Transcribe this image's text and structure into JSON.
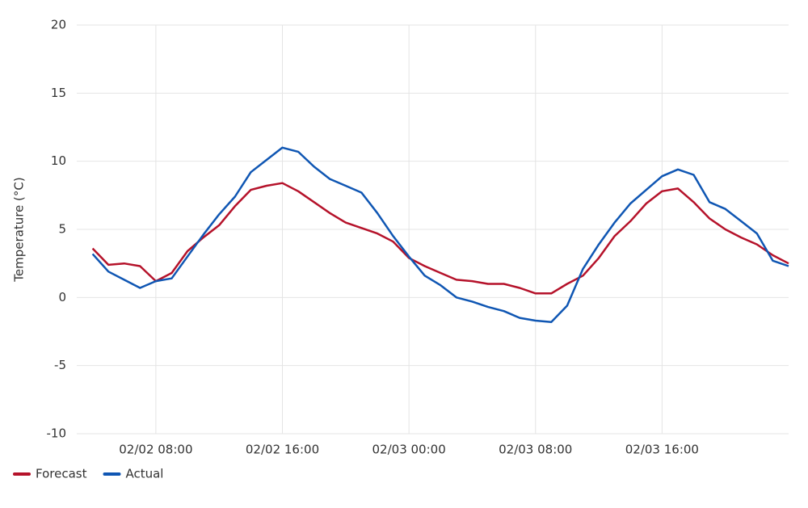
{
  "chart_data": {
    "type": "line",
    "y_label": "Temperature (°C)",
    "x": [
      null,
      null,
      null,
      null,
      null,
      "02/02 08:00",
      null,
      null,
      null,
      null,
      null,
      null,
      null,
      "02/02 16:00",
      null,
      null,
      null,
      null,
      null,
      null,
      null,
      "02/03 00:00",
      null,
      null,
      null,
      null,
      null,
      null,
      null,
      "02/03 08:00",
      null,
      null,
      null,
      null,
      null,
      null,
      null,
      "02/03 16:00",
      null,
      null,
      null,
      null,
      null,
      null,
      null,
      null
    ],
    "series": [
      {
        "name": "Forecast",
        "color": "#b5122a",
        "values": [
          null,
          3.6,
          2.4,
          2.5,
          2.3,
          1.2,
          1.8,
          3.4,
          4.4,
          5.3,
          6.7,
          7.9,
          8.2,
          8.4,
          7.8,
          7.0,
          6.2,
          5.5,
          5.1,
          4.7,
          4.1,
          2.9,
          2.3,
          1.8,
          1.3,
          1.2,
          1.0,
          1.0,
          0.7,
          0.3,
          0.3,
          1.0,
          1.6,
          2.9,
          4.5,
          5.6,
          6.9,
          7.8,
          8.0,
          7.0,
          5.8,
          5.0,
          4.4,
          3.9,
          3.1,
          2.5
        ]
      },
      {
        "name": "Actual",
        "color": "#0f56b3",
        "values": [
          null,
          3.2,
          1.9,
          1.3,
          0.7,
          1.2,
          1.4,
          3.0,
          4.6,
          6.1,
          7.4,
          9.2,
          10.1,
          11.0,
          10.7,
          9.6,
          8.7,
          8.2,
          7.7,
          6.2,
          4.5,
          3.0,
          1.6,
          0.9,
          0.0,
          -0.3,
          -0.7,
          -1.0,
          -1.5,
          -1.7,
          -1.8,
          -0.6,
          2.1,
          3.9,
          5.5,
          6.9,
          7.9,
          8.9,
          9.4,
          9.0,
          7.0,
          6.5,
          5.6,
          4.7,
          2.7,
          2.3
        ]
      }
    ],
    "ylim": [
      -10,
      20
    ],
    "yticks": [
      -10,
      -5,
      0,
      5,
      10,
      15,
      20
    ],
    "grid": true,
    "legend": "bottom-left"
  }
}
